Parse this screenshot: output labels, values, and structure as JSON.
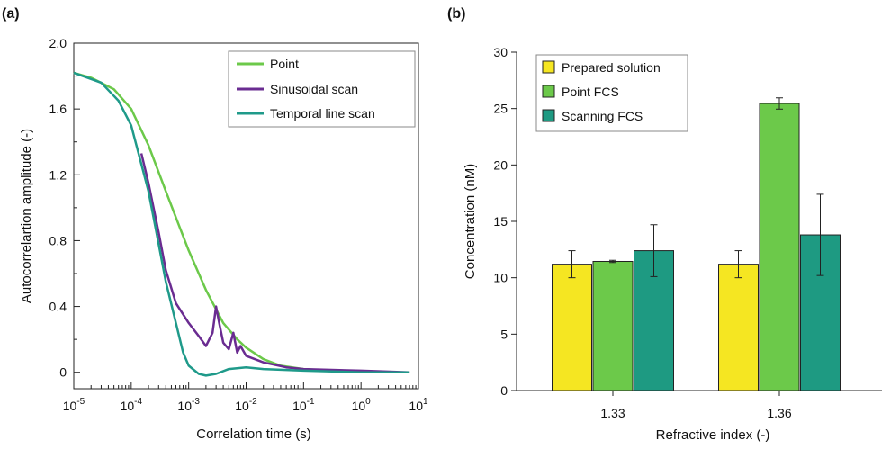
{
  "panel_labels": {
    "a": "(a)",
    "b": "(b)"
  },
  "chart_data": [
    {
      "type": "line",
      "panel": "(a)",
      "xlabel": "Correlation time (s)",
      "ylabel": "Autocorrelartion amplitude (-)",
      "xscale": "log",
      "xlim": [
        1e-05,
        10
      ],
      "ylim": [
        -0.1,
        2.0
      ],
      "xticks": [
        {
          "mant": "10",
          "exp": "-5"
        },
        {
          "mant": "10",
          "exp": "-4"
        },
        {
          "mant": "10",
          "exp": "-3"
        },
        {
          "mant": "10",
          "exp": "-2"
        },
        {
          "mant": "10",
          "exp": "-1"
        },
        {
          "mant": "10",
          "exp": "0"
        },
        {
          "mant": "10",
          "exp": "1"
        }
      ],
      "yticks": [
        "0",
        "0.4",
        "0.8",
        "1.2",
        "1.6",
        "2.0"
      ],
      "ytick_values": [
        0,
        0.4,
        0.8,
        1.2,
        1.6,
        2.0
      ],
      "grid": false,
      "legend_position": "top-right",
      "series": [
        {
          "name": "Point",
          "color": "#6cc94a",
          "x": [
            1e-05,
            2e-05,
            5e-05,
            0.0001,
            0.0002,
            0.0004,
            0.0007,
            0.001,
            0.002,
            0.004,
            0.007,
            0.01,
            0.02,
            0.04,
            0.1,
            1,
            7
          ],
          "y": [
            1.82,
            1.79,
            1.72,
            1.6,
            1.38,
            1.1,
            0.88,
            0.74,
            0.5,
            0.3,
            0.2,
            0.15,
            0.08,
            0.04,
            0.02,
            0.0,
            0.0
          ]
        },
        {
          "name": "Sinusoidal scan",
          "color": "#6a2c91",
          "x": [
            0.00015,
            0.0002,
            0.0003,
            0.0004,
            0.0006,
            0.001,
            0.0015,
            0.002,
            0.0026,
            0.003,
            0.0034,
            0.004,
            0.005,
            0.006,
            0.007,
            0.008,
            0.01,
            0.02,
            0.05,
            0.1,
            1,
            7
          ],
          "y": [
            1.33,
            1.15,
            0.85,
            0.62,
            0.42,
            0.3,
            0.22,
            0.16,
            0.24,
            0.4,
            0.3,
            0.18,
            0.14,
            0.24,
            0.12,
            0.16,
            0.1,
            0.06,
            0.03,
            0.02,
            0.01,
            0.0
          ]
        },
        {
          "name": "Temporal line scan",
          "color": "#1f9a8a",
          "x": [
            1e-05,
            3e-05,
            6e-05,
            0.0001,
            0.0002,
            0.0003,
            0.0004,
            0.0006,
            0.0008,
            0.001,
            0.0015,
            0.002,
            0.003,
            0.005,
            0.01,
            0.02,
            0.1,
            1,
            7
          ],
          "y": [
            1.82,
            1.76,
            1.65,
            1.5,
            1.1,
            0.78,
            0.55,
            0.3,
            0.12,
            0.04,
            -0.01,
            -0.02,
            -0.01,
            0.02,
            0.03,
            0.02,
            0.01,
            0.0,
            0.0
          ]
        }
      ]
    },
    {
      "type": "bar",
      "panel": "(b)",
      "xlabel": "Refractive index (-)",
      "ylabel": "Concentration (nM)",
      "categories": [
        "1.33",
        "1.36"
      ],
      "ylim": [
        0,
        30
      ],
      "yticks": [
        "0",
        "5",
        "10",
        "15",
        "20",
        "25",
        "30"
      ],
      "ytick_values": [
        0,
        5,
        10,
        15,
        20,
        25,
        30
      ],
      "grid": false,
      "legend_position": "top-left",
      "series": [
        {
          "name": "Prepared solution",
          "color": "#f5e622",
          "values": [
            11.2,
            11.2
          ],
          "errors": [
            1.2,
            1.2
          ]
        },
        {
          "name": "Point FCS",
          "color": "#6cc94a",
          "values": [
            11.45,
            25.45
          ],
          "errors": [
            0.1,
            0.5
          ]
        },
        {
          "name": "Scanning FCS",
          "color": "#1e9a82",
          "values": [
            12.4,
            13.8
          ],
          "errors": [
            2.3,
            3.6
          ]
        }
      ]
    }
  ]
}
